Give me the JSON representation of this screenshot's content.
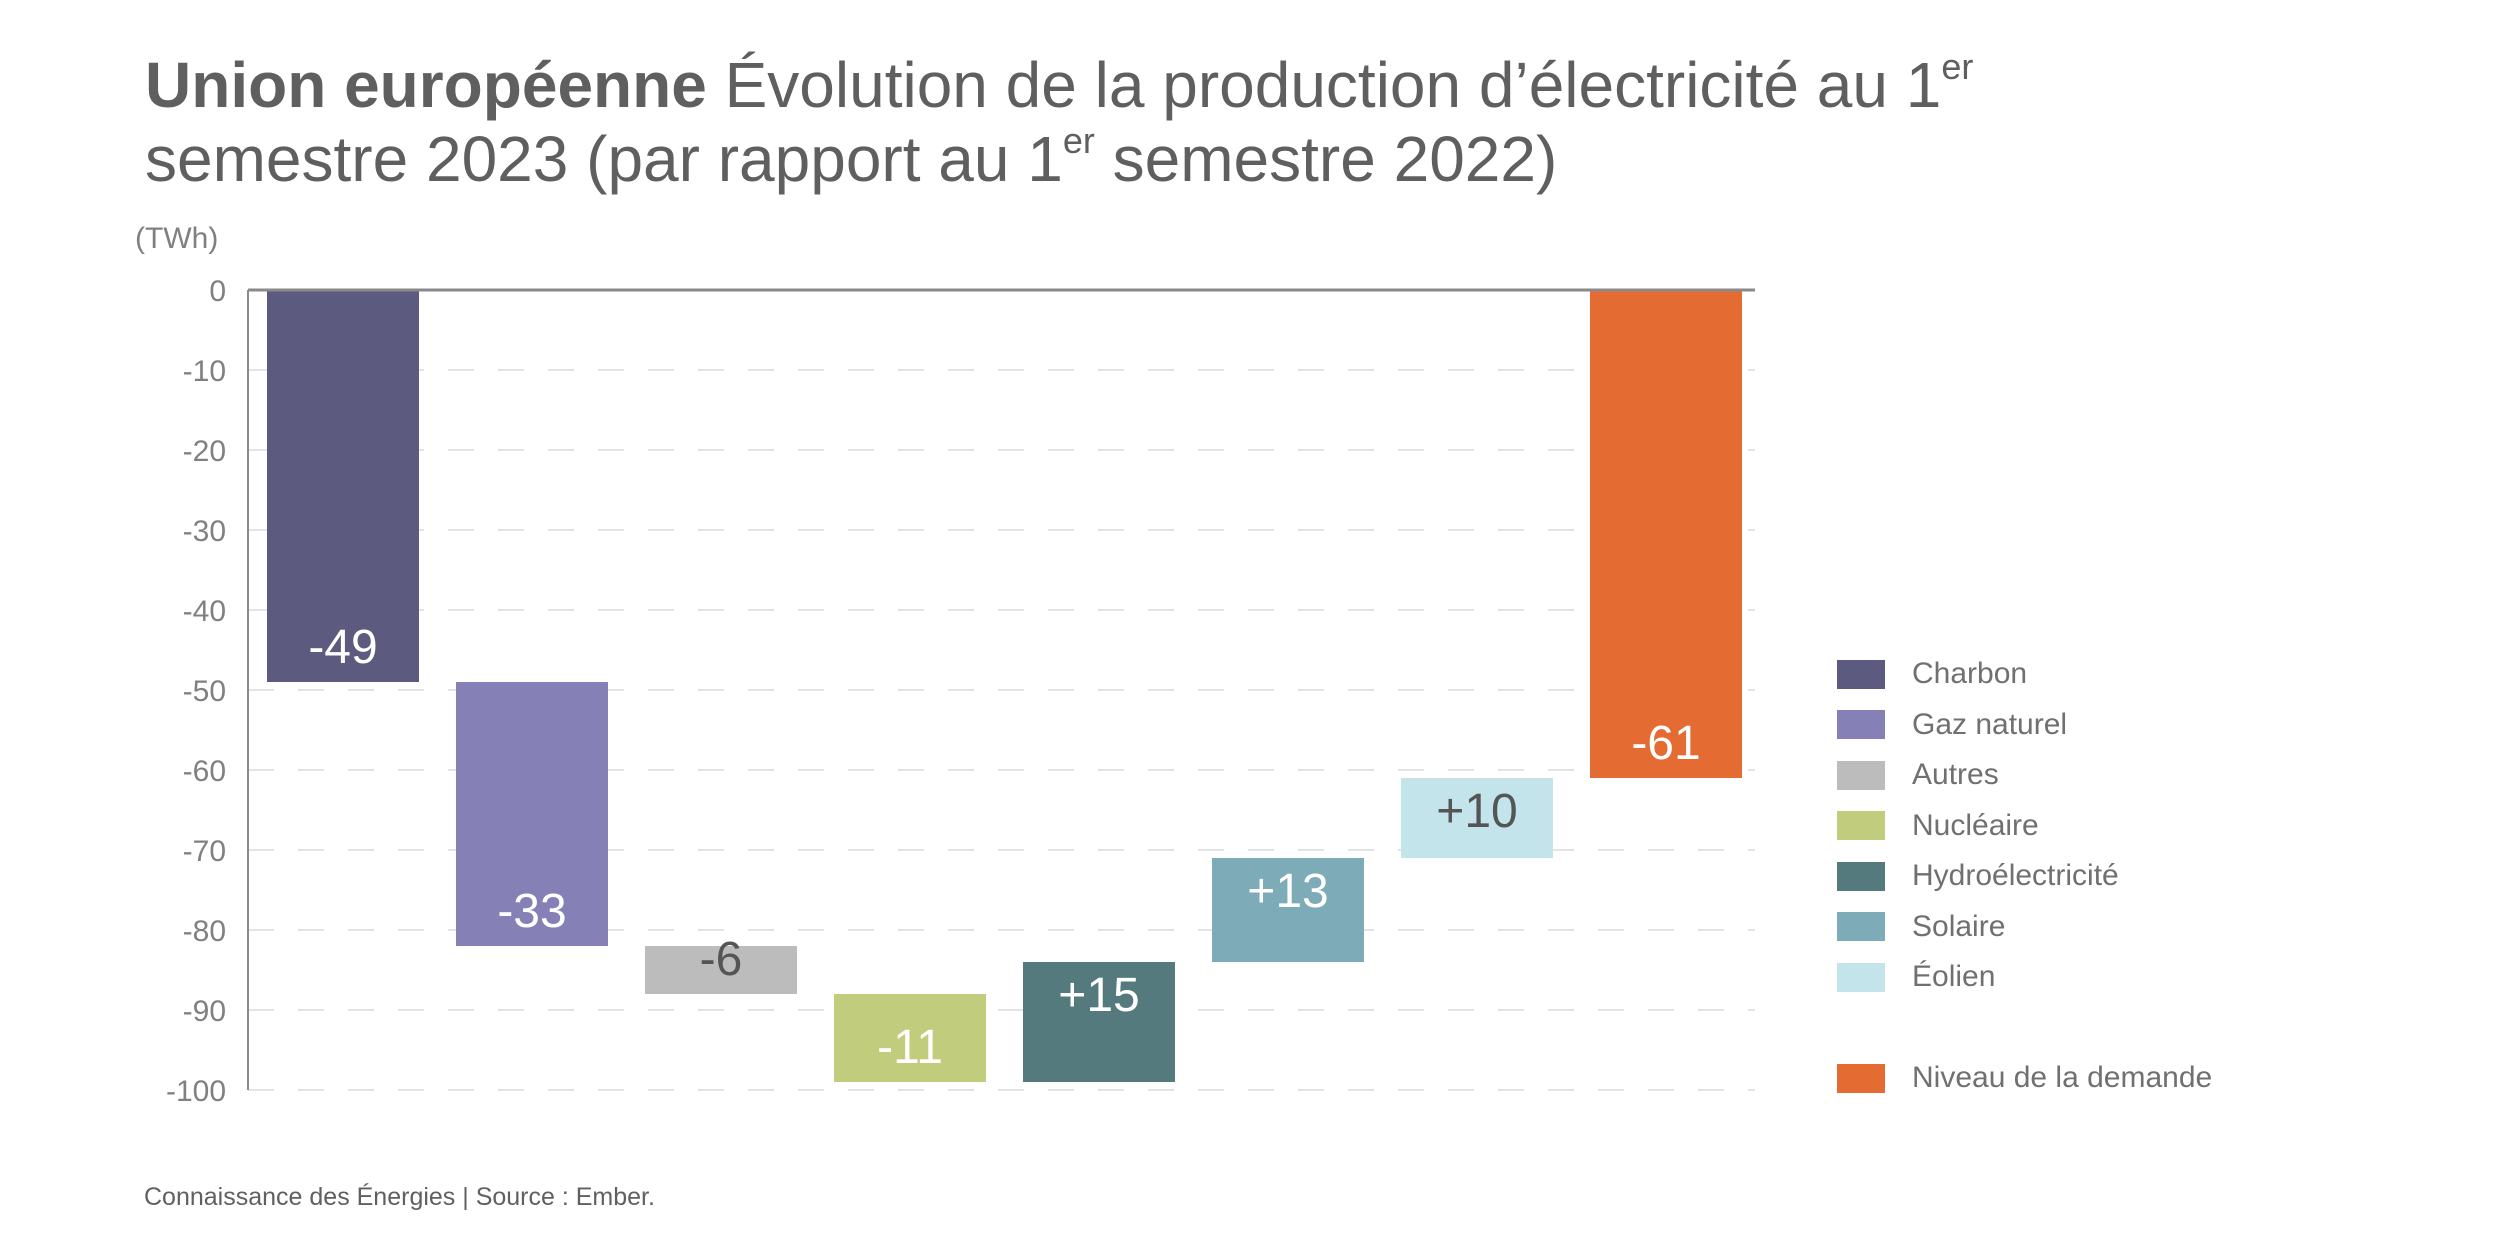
{
  "title": {
    "bold": "Union européenne",
    "part1": "Évolution de la production d’électricité au 1",
    "sup1": "er",
    "part2": " semestre 2023 (par rapport au 1",
    "sup2": "er",
    "part3": " semestre 2022)"
  },
  "footer": "Connaissance des Énergies | Source : Ember.",
  "chart_data": {
    "type": "waterfall",
    "ylabel": "(TWh)",
    "ylim": [
      -100,
      0
    ],
    "yticks": [
      "0",
      "-10",
      "-20",
      "-30",
      "-40",
      "-50",
      "-60",
      "-70",
      "-80",
      "-90",
      "-100"
    ],
    "grid": true,
    "legend_placement": "right",
    "bars": [
      {
        "name": "Charbon",
        "value": -49,
        "label": "-49",
        "start": 0,
        "end": -49,
        "color": "#5c5a7e",
        "label_color": "#ffffff"
      },
      {
        "name": "Gaz naturel",
        "value": -33,
        "label": "-33",
        "start": -49,
        "end": -82,
        "color": "#8580b6",
        "label_color": "#ffffff"
      },
      {
        "name": "Autres",
        "value": -6,
        "label": "-6",
        "start": -82,
        "end": -88,
        "color": "#bcbcbc",
        "label_color": "#555555"
      },
      {
        "name": "Nucléaire",
        "value": -11,
        "label": "-11",
        "start": -88,
        "end": -99,
        "color": "#c1cc7c",
        "label_color": "#ffffff"
      },
      {
        "name": "Hydroélectricité",
        "value": 15,
        "label": "+15",
        "start": -99,
        "end": -84,
        "color": "#557a7e",
        "label_color": "#ffffff"
      },
      {
        "name": "Solaire",
        "value": 13,
        "label": "+13",
        "start": -84,
        "end": -71,
        "color": "#7eabb8",
        "label_color": "#ffffff"
      },
      {
        "name": "Éolien",
        "value": 10,
        "label": "+10",
        "start": -71,
        "end": -61,
        "color": "#c2e4ea",
        "label_color": "#555555"
      },
      {
        "name": "Niveau de la demande",
        "value": -61,
        "label": "-61",
        "start": 0,
        "end": -61,
        "color": "#e46c33",
        "label_color": "#ffffff"
      }
    ]
  }
}
